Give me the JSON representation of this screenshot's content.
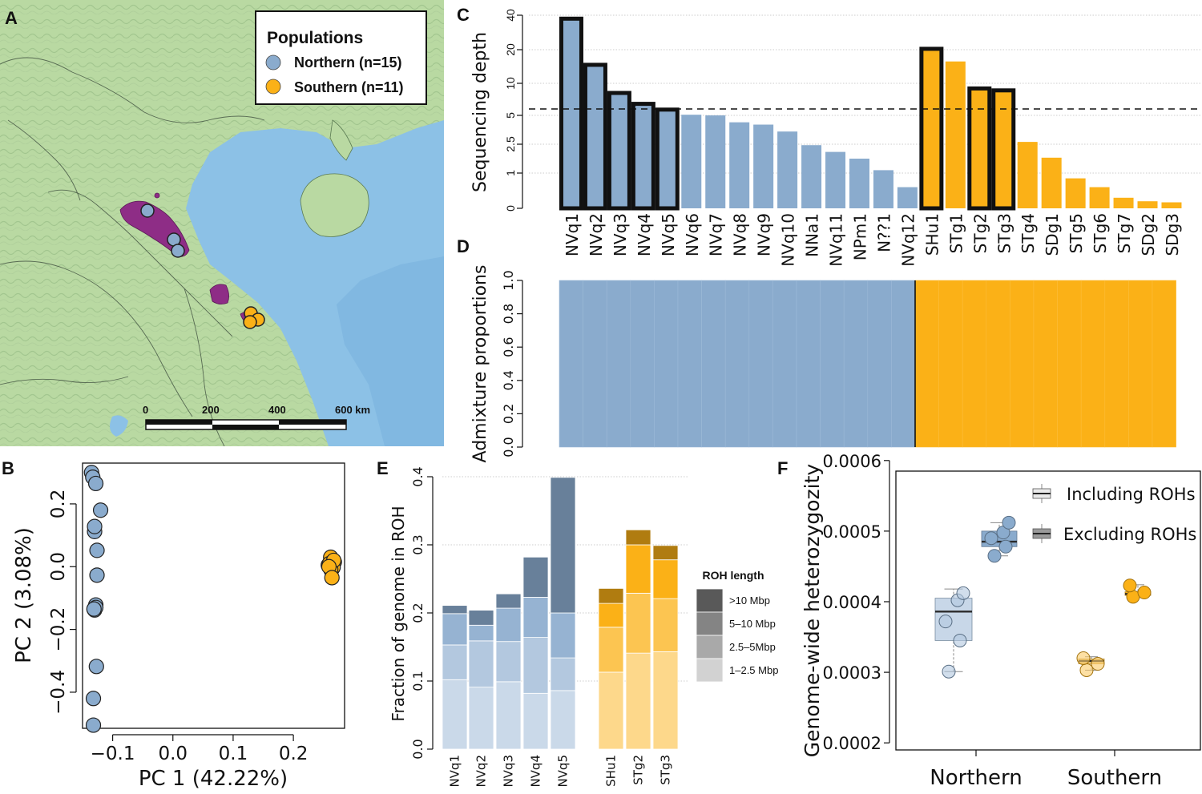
{
  "colors": {
    "northern": "#8aabcd",
    "southern": "#fbb117",
    "border": "#111111",
    "range": "#8e2d86",
    "sea": "#8cc1e6",
    "land": "#b5d7a0",
    "gridline": "#bdbdbd"
  },
  "panels": {
    "a": "A",
    "b": "B",
    "c": "C",
    "d": "D",
    "e": "E",
    "f": "F"
  },
  "map": {
    "legend_title": "Populations",
    "legend_items": [
      "Northern (n=15)",
      "Southern (n=11)"
    ],
    "scale_labels": [
      "0",
      "200",
      "400",
      "600 km"
    ]
  },
  "chart_data": [
    {
      "id": "pca",
      "type": "scatter",
      "xlabel": "PC 1 (42.22%)",
      "ylabel": "PC 2 (3.08%)",
      "xlim": [
        -0.15,
        0.285
      ],
      "ylim": [
        -0.515,
        0.33
      ],
      "xticks": [
        -0.1,
        0.0,
        0.1,
        0.2
      ],
      "xtick_labels": [
        "−0.1",
        "0.0",
        "0.1",
        "0.2"
      ],
      "yticks": [
        -0.4,
        -0.2,
        0.0,
        0.2
      ],
      "ytick_labels": [
        "−0.4",
        "−0.2",
        "0.0",
        "0.2"
      ],
      "series": [
        {
          "name": "Northern",
          "x": [
            -0.135,
            -0.133,
            -0.128,
            -0.13,
            -0.12,
            -0.13,
            -0.126,
            -0.126,
            -0.128,
            -0.13,
            -0.128,
            -0.131,
            -0.127,
            -0.132,
            -0.132
          ],
          "y": [
            0.3,
            0.285,
            0.265,
            0.112,
            0.18,
            0.128,
            0.052,
            -0.027,
            -0.122,
            -0.138,
            -0.13,
            -0.135,
            -0.318,
            -0.42,
            -0.505
          ]
        },
        {
          "name": "Southern",
          "x": [
            0.262,
            0.268,
            0.258,
            0.265,
            0.263,
            0.26,
            0.266,
            0.262,
            0.267,
            0.259,
            0.264
          ],
          "y": [
            0.03,
            0.015,
            0.005,
            -0.005,
            -0.012,
            0.01,
            -0.002,
            -0.008,
            0.02,
            0.0,
            -0.035
          ]
        }
      ]
    },
    {
      "id": "depth",
      "type": "bar",
      "ylabel": "Sequencing depth",
      "ytick_labels": [
        "0",
        "1",
        "2.5",
        "5",
        "10",
        "20",
        "40"
      ],
      "ytick_values": [
        0,
        1,
        2.5,
        5,
        10,
        20,
        40
      ],
      "threshold": 6,
      "categories": [
        "NVq1",
        "NVq2",
        "NVq3",
        "NVq4",
        "NVq5",
        "NVq6",
        "NVq7",
        "NVq8",
        "NVq9",
        "NVq10",
        "NNa1",
        "NVq11",
        "NPm1",
        "N??1",
        "NVq12",
        "SHu1",
        "STg1",
        "STg2",
        "STg3",
        "STg4",
        "SDg1",
        "STg5",
        "STg6",
        "STg7",
        "SDg2",
        "SDg3"
      ],
      "values": [
        38,
        15.5,
        8.5,
        6.8,
        5.9,
        5.1,
        5.0,
        4.4,
        4.2,
        3.6,
        2.45,
        2.1,
        1.75,
        1.15,
        0.6,
        20.5,
        16.5,
        9.2,
        8.9,
        2.7,
        1.8,
        0.85,
        0.6,
        0.3,
        0.2,
        0.17
      ],
      "population": [
        "Northern",
        "Northern",
        "Northern",
        "Northern",
        "Northern",
        "Northern",
        "Northern",
        "Northern",
        "Northern",
        "Northern",
        "Northern",
        "Northern",
        "Northern",
        "Northern",
        "Northern",
        "Southern",
        "Southern",
        "Southern",
        "Southern",
        "Southern",
        "Southern",
        "Southern",
        "Southern",
        "Southern",
        "Southern",
        "Southern"
      ],
      "highlighted": [
        "NVq1",
        "NVq2",
        "NVq3",
        "NVq4",
        "NVq5",
        "SHu1",
        "STg2",
        "STg3"
      ]
    },
    {
      "id": "admixture",
      "type": "bar",
      "ylabel": "Admixture proportions",
      "ylim": [
        0,
        1
      ],
      "yticks": [
        0.0,
        0.2,
        0.4,
        0.6,
        0.8,
        1.0
      ],
      "ytick_labels": [
        "0.0",
        "0.2",
        "0.4",
        "0.6",
        "0.8",
        "1.0"
      ],
      "n_northern": 15,
      "n_southern": 11,
      "values": [
        1,
        1,
        1,
        1,
        1,
        1,
        1,
        1,
        1,
        1,
        1,
        1,
        1,
        1,
        1,
        1,
        1,
        1,
        1,
        1,
        1,
        1,
        1,
        1,
        1,
        1
      ]
    },
    {
      "id": "roh",
      "type": "bar",
      "stacked": true,
      "ylabel": "Fraction of genome in ROH",
      "ylim": [
        0,
        0.4
      ],
      "yticks": [
        0.0,
        0.1,
        0.2,
        0.3,
        0.4
      ],
      "ytick_labels": [
        "0.0",
        "0.1",
        "0.2",
        "0.3",
        "0.4"
      ],
      "legend_title": "ROH length",
      "categories": [
        "NVq1",
        "NVq2",
        "NVq3",
        "NVq4",
        "NVq5",
        "SHu1",
        "STg2",
        "STg3"
      ],
      "population": [
        "Northern",
        "Northern",
        "Northern",
        "Northern",
        "Northern",
        "Southern",
        "Southern",
        "Southern"
      ],
      "series": [
        {
          "name": "1–2.5 Mbp",
          "values": [
            0.102,
            0.091,
            0.099,
            0.082,
            0.086,
            0.113,
            0.141,
            0.143
          ]
        },
        {
          "name": "2.5–5Mbp",
          "values": [
            0.051,
            0.068,
            0.059,
            0.082,
            0.048,
            0.066,
            0.088,
            0.078
          ]
        },
        {
          "name": "5–10 Mbp",
          "values": [
            0.046,
            0.023,
            0.049,
            0.059,
            0.066,
            0.035,
            0.071,
            0.057
          ]
        },
        {
          "name": ">10 Mbp",
          "values": [
            0.012,
            0.022,
            0.021,
            0.059,
            0.199,
            0.022,
            0.022,
            0.021
          ]
        }
      ]
    },
    {
      "id": "heterozygosity",
      "type": "box",
      "ylabel": "Genome-wide heterozygozity",
      "ylim": [
        0.00019,
        0.000585
      ],
      "yticks": [
        0.0002,
        0.0003,
        0.0004,
        0.0005,
        0.0006
      ],
      "ytick_labels": [
        "0.0002",
        "0.0003",
        "0.0004",
        "0.0005",
        "0.0006"
      ],
      "categories": [
        "Northern",
        "Southern"
      ],
      "legend": [
        "Including ROHs",
        "Excluding ROHs"
      ],
      "series": [
        {
          "name": "Including ROHs",
          "population": "Northern",
          "points": [
            0.000301,
            0.000345,
            0.000372,
            0.000402,
            0.000412
          ],
          "box": [
            0.000301,
            0.000345,
            0.000386,
            0.000405,
            0.000418
          ]
        },
        {
          "name": "Excluding ROHs",
          "population": "Northern",
          "points": [
            0.000465,
            0.000478,
            0.00049,
            0.000498,
            0.000512
          ],
          "box": [
            0.000465,
            0.000478,
            0.000485,
            0.0005,
            0.000512
          ]
        },
        {
          "name": "Including ROHs",
          "population": "Southern",
          "points": [
            0.000303,
            0.000312,
            0.00032
          ],
          "box": [
            0.000303,
            0.000312,
            0.000316,
            0.000319,
            0.000322
          ]
        },
        {
          "name": "Excluding ROHs",
          "population": "Southern",
          "points": [
            0.000407,
            0.000413,
            0.000423
          ],
          "box": [
            0.000406,
            0.000409,
            0.000411,
            0.000414,
            0.000424
          ]
        }
      ]
    }
  ]
}
